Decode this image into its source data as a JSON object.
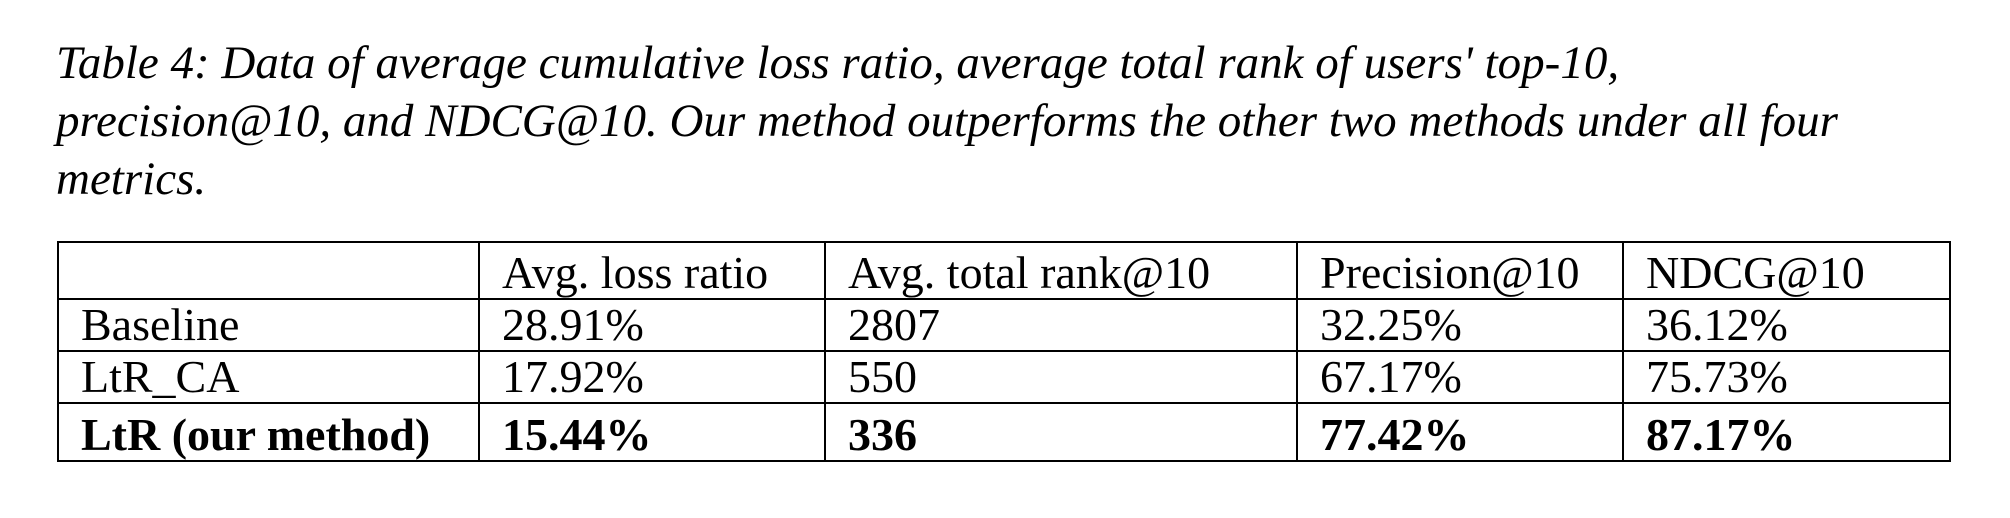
{
  "caption": {
    "lines": [
      "Table 4: Data of average cumulative loss ratio, average total rank of users' top-10,",
      "precision@10, and NDCG@10. Our method outperforms the other two methods under all four",
      "metrics."
    ]
  },
  "table": {
    "headers": [
      "",
      "Avg. loss ratio",
      "Avg. total rank@10",
      "Precision@10",
      "NDCG@10"
    ],
    "rows": [
      [
        "Baseline",
        "28.91%",
        "2807",
        "32.25%",
        "36.12%"
      ],
      [
        "LtR_CA",
        "17.92%",
        "550",
        "67.17%",
        "75.73%"
      ],
      [
        "LtR (our method)",
        "15.44%",
        "336",
        "77.42%",
        "87.17%"
      ]
    ]
  }
}
